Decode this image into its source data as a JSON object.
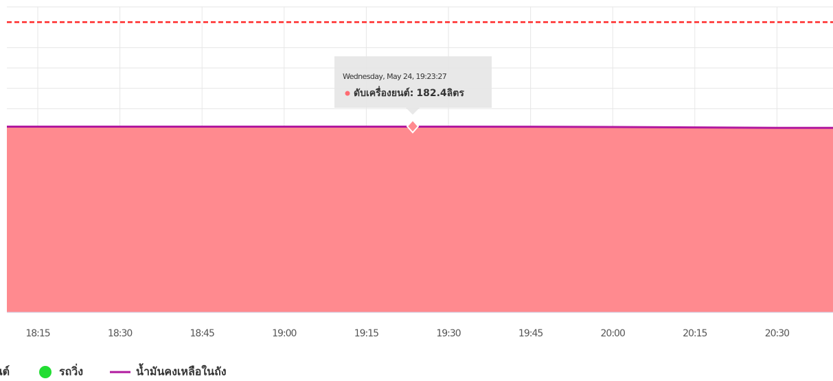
{
  "chart_data": {
    "type": "area",
    "categories": [
      "18:15",
      "18:30",
      "18:45",
      "19:00",
      "19:15",
      "19:30",
      "19:45",
      "20:00",
      "20:15",
      "20:30"
    ],
    "series": [
      {
        "name": "ดับเครื่องยนต์",
        "color": "#ff8a8f",
        "values": [
          182.4,
          182.4,
          182.4,
          182.4,
          182.4,
          182.4,
          182.3,
          182.0,
          181.6,
          181.2
        ]
      },
      {
        "name": "รถวิ่ง",
        "color": "#22dd33",
        "values": [
          null,
          null,
          null,
          null,
          null,
          null,
          null,
          null,
          null,
          null
        ]
      },
      {
        "name": "น้ำมันคงเหลือในถัง",
        "color": "#b0189e",
        "values": [
          182.4,
          182.4,
          182.4,
          182.4,
          182.4,
          182.4,
          182.3,
          182.0,
          181.6,
          181.2
        ]
      }
    ],
    "ylim": [
      0,
      300
    ],
    "yticks": [
      200,
      220,
      240,
      260
    ],
    "threshold": {
      "value": 285,
      "color": "#ff2a2a"
    },
    "grid": true,
    "tooltip": {
      "header": "Wednesday, May 24, 19:23:27",
      "series_name": "ดับเครื่องยนต์",
      "separator": ":",
      "value": 182.4,
      "unit": "ลิตร"
    }
  }
}
